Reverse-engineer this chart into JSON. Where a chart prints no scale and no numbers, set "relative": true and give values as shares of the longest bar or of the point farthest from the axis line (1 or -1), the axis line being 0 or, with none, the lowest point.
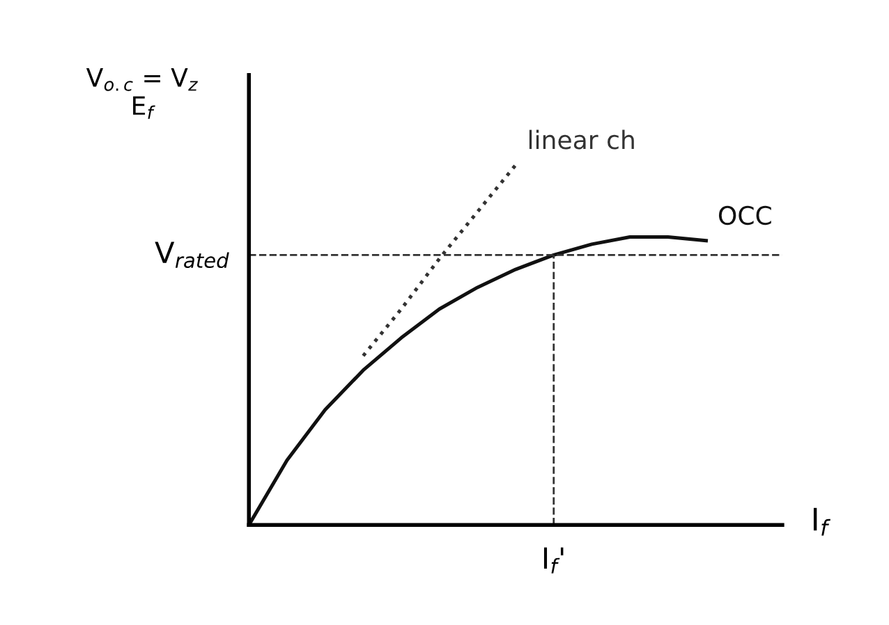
{
  "chart_data": {
    "type": "line",
    "relative": true,
    "ylabel": "V$_{o.c}$ = V$_{z}$\nE$_{f}$",
    "xlabel": "I$_{f}$",
    "categories": [
      null,
      null,
      null,
      null,
      null,
      null,
      null,
      null,
      null,
      null,
      null,
      null,
      null
    ],
    "series": [
      {
        "name": "OCC",
        "color": "#111111",
        "line_style": "solid",
        "values": [
          0,
          0.18,
          0.32,
          0.43,
          0.52,
          0.6,
          0.66,
          0.71,
          0.75,
          0.78,
          0.8,
          0.8,
          0.79
        ]
      },
      {
        "name": "linear ch",
        "color": "#333333",
        "line_style": "dotted",
        "values": [
          null,
          null,
          null,
          0.47,
          0.6,
          0.74,
          0.87,
          1.0,
          null,
          null,
          null,
          null,
          null
        ]
      }
    ],
    "ref_lines": [
      {
        "axis": "y",
        "value": 0.75,
        "label": "V$_{rated}$",
        "line_style": "dashed",
        "color": "#333333"
      }
    ],
    "annotations": [
      "I$_{f}$'"
    ],
    "grid": false,
    "legend": false,
    "marker": "none"
  }
}
